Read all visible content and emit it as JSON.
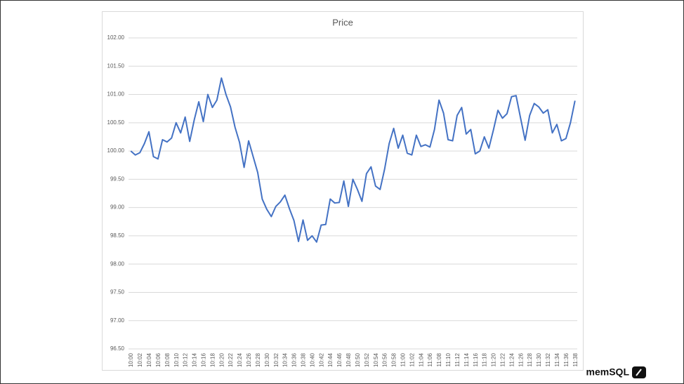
{
  "chart_data": {
    "type": "line",
    "title": "Price",
    "categories": [
      "10:00",
      null,
      "10:02",
      null,
      "10:04",
      null,
      "10:06",
      null,
      "10:08",
      null,
      "10:10",
      null,
      "10:12",
      null,
      "10:14",
      null,
      "10:16",
      null,
      "10:18",
      null,
      "10:20",
      null,
      "10:22",
      null,
      "10:24",
      null,
      "10:26",
      null,
      "10:28",
      null,
      "10:30",
      null,
      "10:32",
      null,
      "10:34",
      null,
      "10:36",
      null,
      "10:38",
      null,
      "10:40",
      null,
      "10:42",
      null,
      "10:44",
      null,
      "10:46",
      null,
      "10:48",
      null,
      "10:50",
      null,
      "10:52",
      null,
      "10:54",
      null,
      "10:56",
      null,
      "10:58",
      null,
      "11:00",
      null,
      "11:02",
      null,
      "11:04",
      null,
      "11:06",
      null,
      "11:08",
      null,
      "11:10",
      null,
      "11:12",
      null,
      "11:14",
      null,
      "11:16",
      null,
      "11:18",
      null,
      "11:20",
      null,
      "11:22",
      null,
      "11:24",
      null,
      "11:26",
      null,
      "11:28",
      null,
      "11:30",
      null,
      "11:32",
      null,
      "11:34",
      null,
      "11:36",
      null,
      "11:38"
    ],
    "values": [
      100.0,
      99.93,
      99.97,
      100.13,
      100.34,
      99.9,
      99.86,
      100.2,
      100.16,
      100.23,
      100.5,
      100.32,
      100.6,
      100.17,
      100.55,
      100.87,
      100.52,
      101.0,
      100.77,
      100.9,
      101.29,
      101.0,
      100.78,
      100.42,
      100.15,
      99.71,
      100.18,
      99.9,
      99.62,
      99.15,
      98.97,
      98.84,
      99.02,
      99.1,
      99.22,
      98.98,
      98.77,
      98.4,
      98.78,
      98.42,
      98.5,
      98.39,
      98.69,
      98.7,
      99.15,
      99.08,
      99.09,
      99.47,
      99.02,
      99.5,
      99.32,
      99.11,
      99.6,
      99.72,
      99.38,
      99.32,
      99.68,
      100.13,
      100.4,
      100.05,
      100.28,
      99.96,
      99.93,
      100.28,
      100.08,
      100.11,
      100.07,
      100.38,
      100.9,
      100.67,
      100.2,
      100.18,
      100.63,
      100.77,
      100.3,
      100.38,
      99.95,
      100.0,
      100.25,
      100.05,
      100.37,
      100.72,
      100.58,
      100.66,
      100.96,
      100.98,
      100.58,
      100.19,
      100.63,
      100.84,
      100.78,
      100.67,
      100.73,
      100.32,
      100.47,
      100.18,
      100.22,
      100.5,
      100.89
    ],
    "color": "#4472c4",
    "ylim": [
      96.5,
      102
    ],
    "yticks": [
      {
        "value": 96.5,
        "label": "96.50"
      },
      {
        "value": 97,
        "label": "97.00"
      },
      {
        "value": 97.5,
        "label": "97.50"
      },
      {
        "value": 98,
        "label": "98.00"
      },
      {
        "value": 98.5,
        "label": "98.50"
      },
      {
        "value": 99,
        "label": "99.00"
      },
      {
        "value": 99.5,
        "label": "99.50"
      },
      {
        "value": 100,
        "label": "100.00"
      },
      {
        "value": 100.5,
        "label": "100.50"
      },
      {
        "value": 101,
        "label": "101.00"
      },
      {
        "value": 101.5,
        "label": "101.50"
      },
      {
        "value": 102,
        "label": "102.00"
      }
    ],
    "grid": true
  },
  "logo": "memSQL"
}
